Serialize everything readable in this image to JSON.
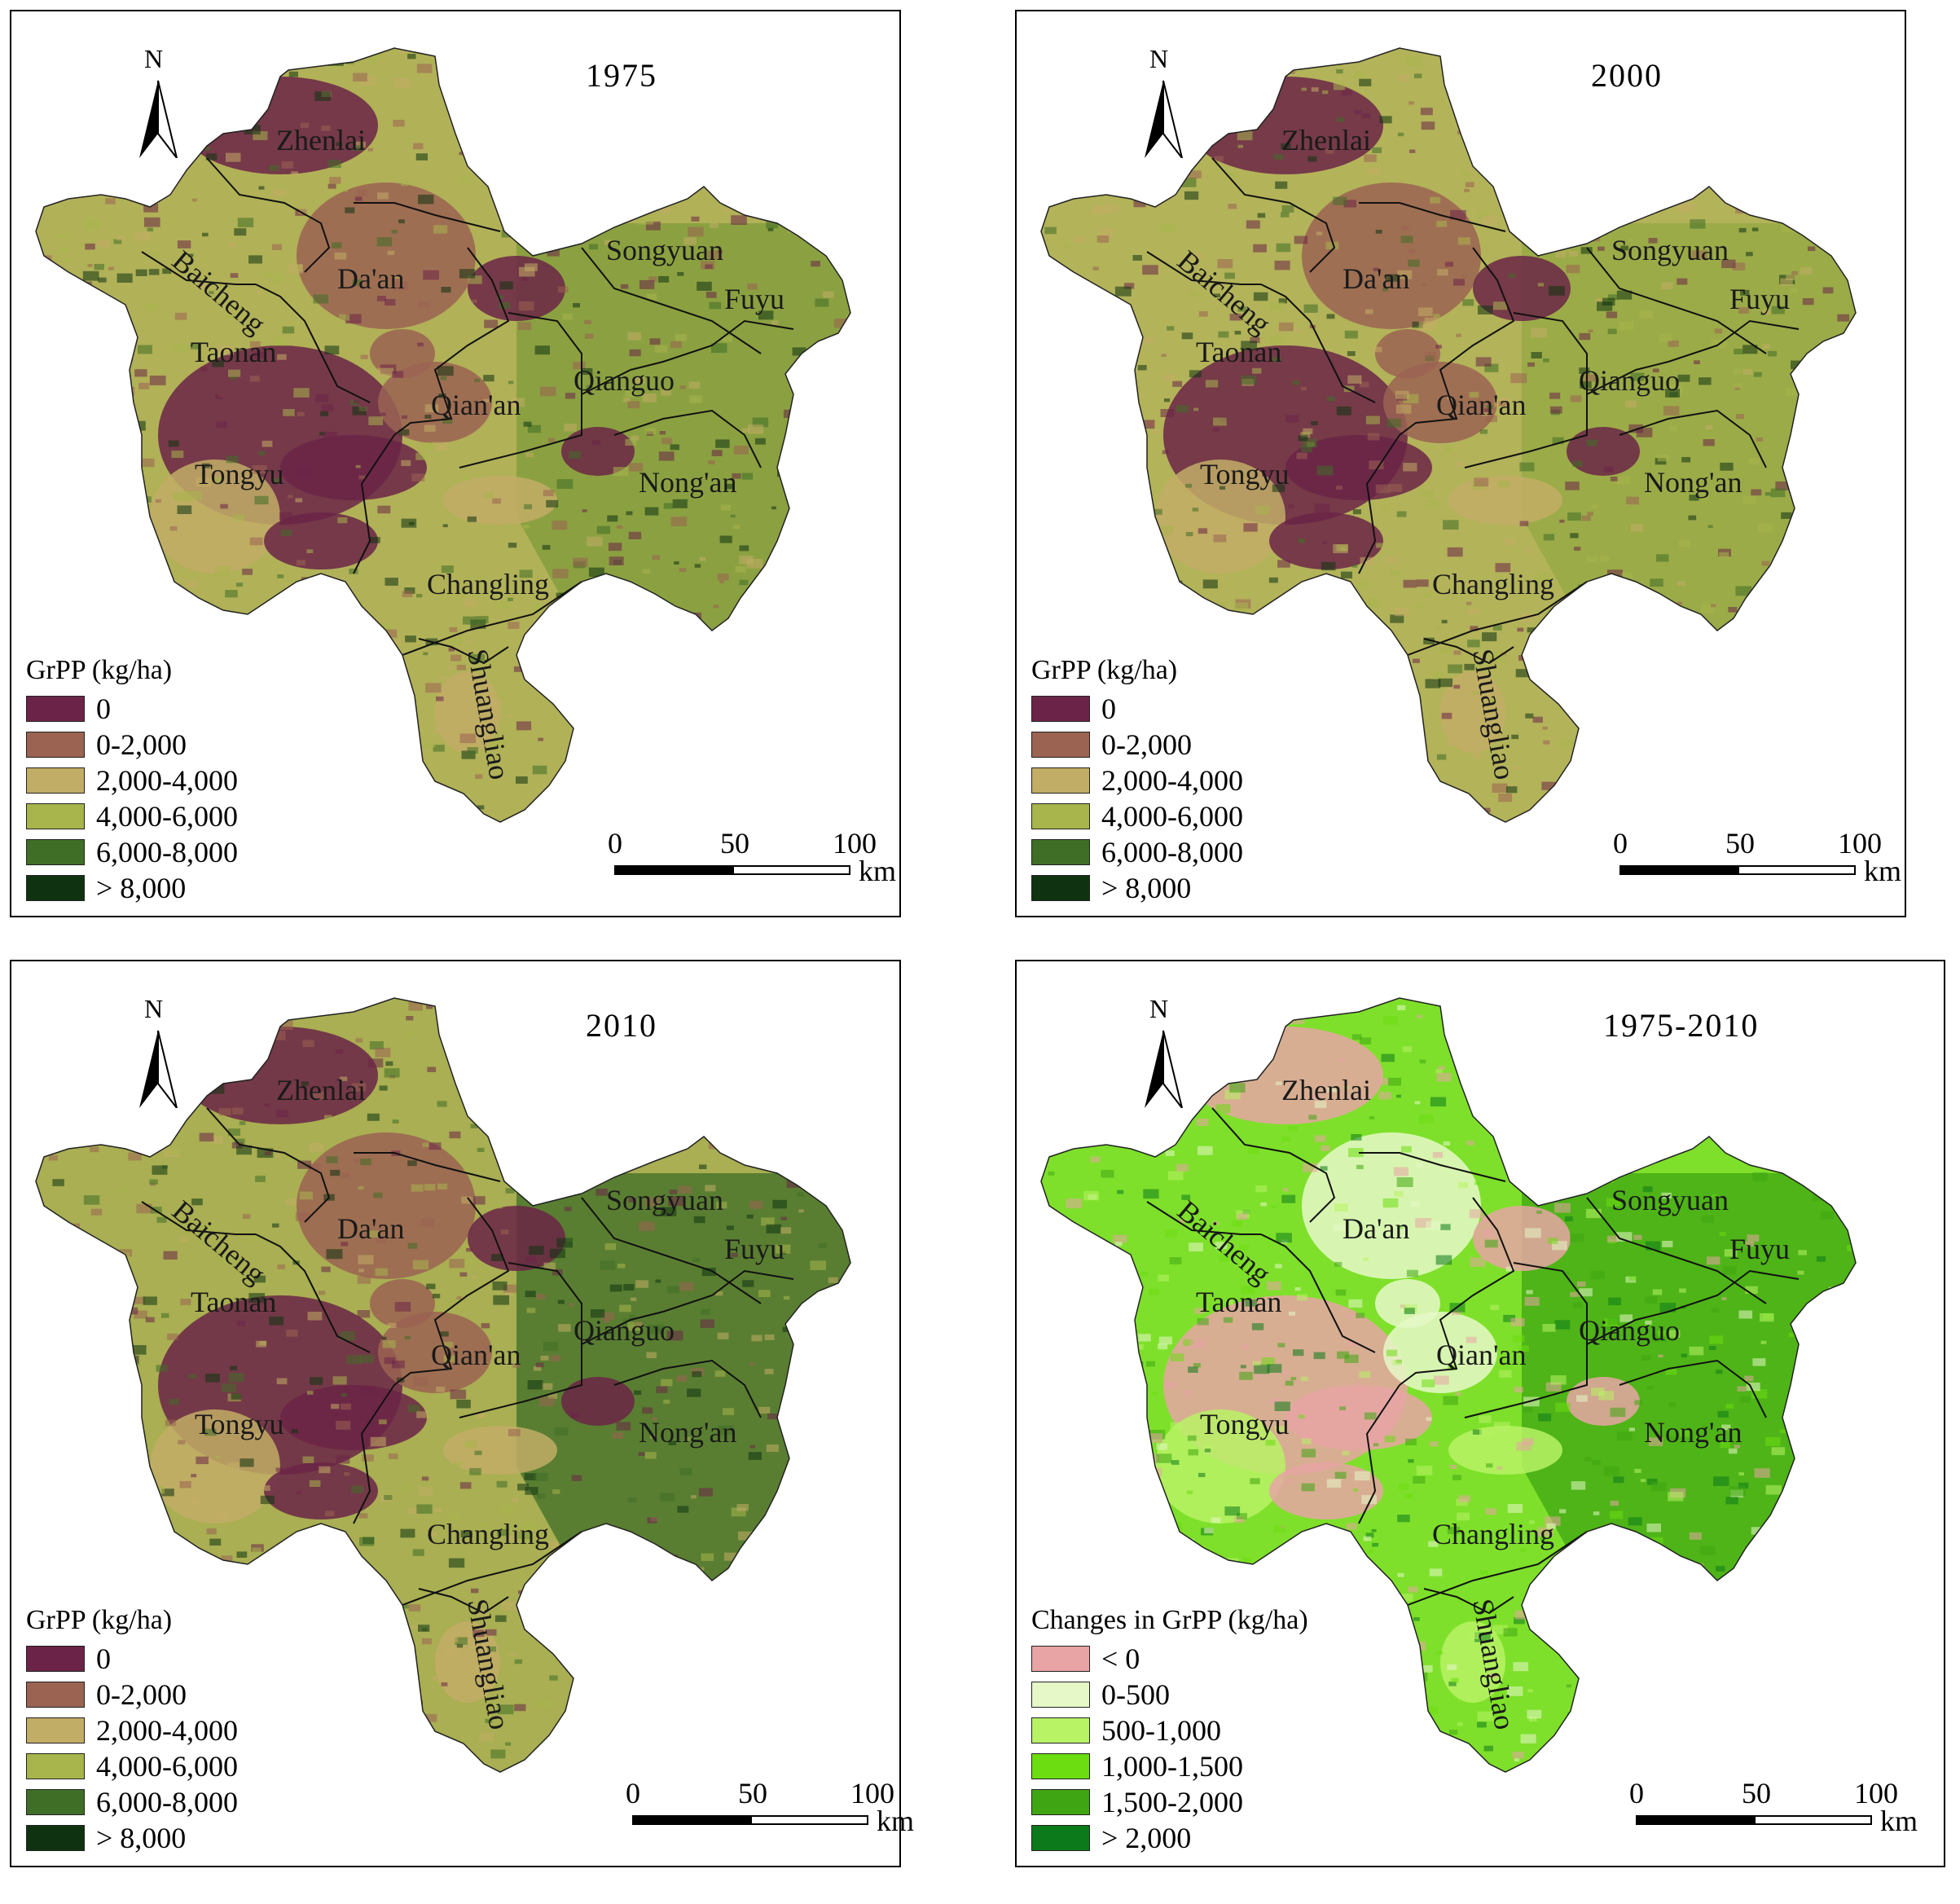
{
  "panels": [
    {
      "year": "1975",
      "legend_title": "GrPP (kg/ha)",
      "legend": [
        {
          "label": "0",
          "color": "#6b2447"
        },
        {
          "label": "0-2,000",
          "color": "#9b6352"
        },
        {
          "label": "2,000-4,000",
          "color": "#c2ad66"
        },
        {
          "label": "4,000-6,000",
          "color": "#a7b54c"
        },
        {
          "label": "6,000-8,000",
          "color": "#3f6e27"
        },
        {
          "label": "> 8,000",
          "color": "#0f3310"
        }
      ],
      "base_color": "#b1b158",
      "blob_colors": [
        "#6b2447",
        "#9b6352",
        "#6b2447",
        "#c2ad66"
      ],
      "east_color": "#7f9c3a"
    },
    {
      "year": "2000",
      "legend_title": "GrPP (kg/ha)",
      "legend": [
        {
          "label": "0",
          "color": "#6b2447"
        },
        {
          "label": "0-2,000",
          "color": "#9b6352"
        },
        {
          "label": "2,000-4,000",
          "color": "#c2ad66"
        },
        {
          "label": "4,000-6,000",
          "color": "#a7b54c"
        },
        {
          "label": "6,000-8,000",
          "color": "#3f6e27"
        },
        {
          "label": "> 8,000",
          "color": "#0f3310"
        }
      ],
      "base_color": "#b3b35a",
      "blob_colors": [
        "#6b2447",
        "#9b6352",
        "#6b2447",
        "#c2ad66"
      ],
      "east_color": "#93a843"
    },
    {
      "year": "2010",
      "legend_title": "GrPP (kg/ha)",
      "legend": [
        {
          "label": "0",
          "color": "#6b2447"
        },
        {
          "label": "0-2,000",
          "color": "#9b6352"
        },
        {
          "label": "2,000-4,000",
          "color": "#c2ad66"
        },
        {
          "label": "4,000-6,000",
          "color": "#a7b54c"
        },
        {
          "label": "6,000-8,000",
          "color": "#3f6e27"
        },
        {
          "label": "> 8,000",
          "color": "#0f3310"
        }
      ],
      "base_color": "#a9af52",
      "blob_colors": [
        "#6b2447",
        "#9b6352",
        "#6b2447",
        "#c2ad66"
      ],
      "east_color": "#3f6e27"
    },
    {
      "year": "1975-2010",
      "legend_title": "Changes in GrPP  (kg/ha)",
      "legend": [
        {
          "label": "< 0",
          "color": "#e8a4a4"
        },
        {
          "label": "0-500",
          "color": "#e6f8c8"
        },
        {
          "label": "500-1,000",
          "color": "#b8f265"
        },
        {
          "label": "1,000-1,500",
          "color": "#6cdd10"
        },
        {
          "label": "1,500-2,000",
          "color": "#3fa512"
        },
        {
          "label": "> 2,000",
          "color": "#0c7a1a"
        }
      ],
      "base_color": "#7ee02a",
      "blob_colors": [
        "#e8a4a4",
        "#e6f8c8",
        "#e8a4a4",
        "#b8f265"
      ],
      "east_color": "#3fa512"
    }
  ],
  "north_label": "N",
  "scale": {
    "ticks": [
      "0",
      "50",
      "100"
    ],
    "unit": "km"
  },
  "places": [
    "Zhenlai",
    "Baicheng",
    "Da'an",
    "Songyuan",
    "Fuyu",
    "Taonan",
    "Qianguo",
    "Qian'an",
    "Tongyu",
    "Nong'an",
    "Changling",
    "Shuangliao"
  ]
}
